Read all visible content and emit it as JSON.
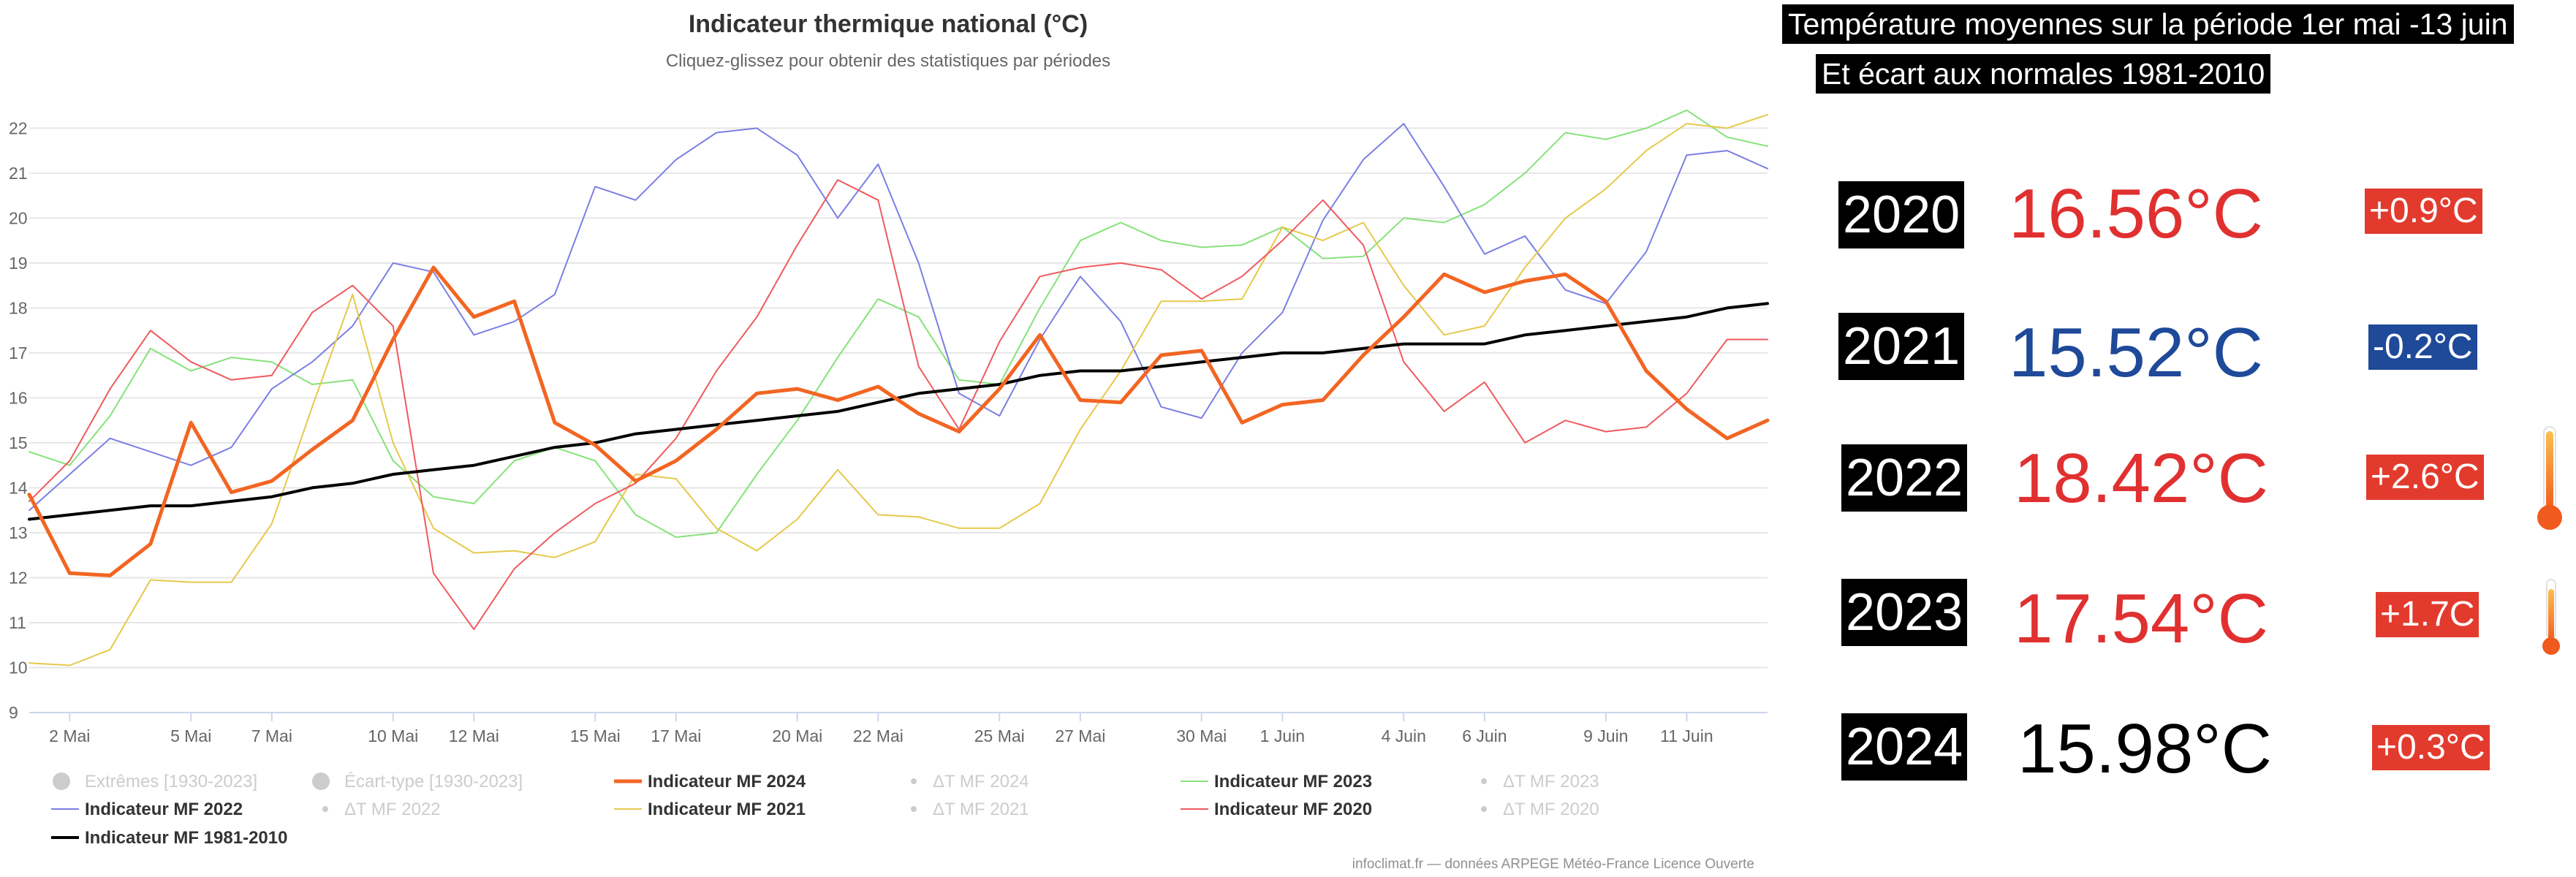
{
  "chart": {
    "title": "Indicateur thermique national (°C)",
    "subtitle": "Cliquez-glissez pour obtenir des statistiques par périodes",
    "credits": "infoclimat.fr — données ARPEGE Météo-France Licence Ouverte"
  },
  "colors": {
    "s2024": "#f26522",
    "s2023": "#86e27a",
    "s2022": "#7b7fe3",
    "s2021": "#e5c94a",
    "s2020": "#ef5a5f",
    "normal": "#000000",
    "red_text": "#e03030",
    "blue_text": "#1f4999",
    "red_badge": "#e23b2e",
    "blue_badge": "#1f4999"
  },
  "chart_data": {
    "type": "line",
    "title": "Indicateur thermique national (°C)",
    "xlabel": "",
    "ylabel": "",
    "ylim": [
      9,
      22.9
    ],
    "yticks": [
      9,
      10,
      11,
      12,
      13,
      14,
      15,
      16,
      17,
      18,
      19,
      20,
      21,
      22
    ],
    "x_start": "1 Mai",
    "x_days": 44,
    "xtick_days": [
      1,
      4,
      7,
      10,
      13,
      16,
      19,
      22,
      25,
      28,
      31,
      34,
      37,
      40,
      43
    ],
    "xtick_labels": [
      "2 Mai",
      "5 Mai",
      "7 Mai",
      "10 Mai",
      "12 Mai",
      "15 Mai",
      "17 Mai",
      "20 Mai",
      "22 Mai",
      "25 Mai",
      "27 Mai",
      "30 Mai",
      "1 Juin",
      "4 Juin",
      "6 Juin",
      "9 Juin",
      "11 Juin"
    ],
    "xtick_index": [
      1,
      4,
      6,
      9,
      11,
      14,
      16,
      19,
      21,
      24,
      26,
      29,
      31,
      34,
      36,
      39,
      41
    ],
    "grid": true,
    "legend_position": "bottom",
    "series": [
      {
        "name": "Indicateur MF 2023",
        "key": "s2023",
        "width": 2,
        "values": [
          14.8,
          14.5,
          15.6,
          17.1,
          16.6,
          16.9,
          16.8,
          16.3,
          16.4,
          14.6,
          13.8,
          13.65,
          14.6,
          14.9,
          14.6,
          13.4,
          12.9,
          13.0,
          14.3,
          15.5,
          16.9,
          18.2,
          17.8,
          16.4,
          16.3,
          18.0,
          19.5,
          19.9,
          19.5,
          19.35,
          19.4,
          19.8,
          19.1,
          19.15,
          20.0,
          19.9,
          20.3,
          21.0,
          21.9,
          21.75,
          22.0,
          22.4,
          21.8,
          21.6
        ]
      },
      {
        "name": "Indicateur MF 2022",
        "key": "s2022",
        "width": 2,
        "values": [
          13.5,
          14.3,
          15.1,
          14.8,
          14.5,
          14.9,
          16.2,
          16.8,
          17.6,
          19.0,
          18.8,
          17.4,
          17.7,
          18.3,
          20.7,
          20.4,
          21.3,
          21.9,
          22.0,
          21.4,
          20.0,
          21.2,
          19.0,
          16.1,
          15.6,
          17.3,
          18.7,
          17.7,
          15.8,
          15.55,
          17.0,
          17.9,
          19.95,
          21.3,
          22.1,
          20.7,
          19.2,
          19.6,
          18.4,
          18.1,
          19.25,
          21.4,
          21.5,
          21.1
        ]
      },
      {
        "name": "Indicateur MF 2021",
        "key": "s2021",
        "width": 2,
        "values": [
          10.1,
          10.05,
          10.4,
          11.95,
          11.9,
          11.9,
          13.2,
          15.8,
          18.3,
          15.0,
          13.1,
          12.55,
          12.6,
          12.45,
          12.8,
          14.3,
          14.2,
          13.1,
          12.6,
          13.3,
          14.4,
          13.4,
          13.35,
          13.1,
          13.1,
          13.65,
          15.3,
          16.6,
          18.15,
          18.15,
          18.2,
          19.8,
          19.5,
          19.9,
          18.5,
          17.4,
          17.6,
          18.9,
          20.0,
          20.65,
          21.5,
          22.1,
          22.0,
          22.3
        ]
      },
      {
        "name": "Indicateur MF 2020",
        "key": "s2020",
        "width": 2,
        "values": [
          13.7,
          14.6,
          16.2,
          17.5,
          16.8,
          16.4,
          16.5,
          17.9,
          18.5,
          17.6,
          12.1,
          10.85,
          12.2,
          13.0,
          13.65,
          14.1,
          15.1,
          16.6,
          17.8,
          19.4,
          20.85,
          20.4,
          16.7,
          15.3,
          17.25,
          18.7,
          18.9,
          19.0,
          18.85,
          18.2,
          18.7,
          19.5,
          20.4,
          19.4,
          16.8,
          15.7,
          16.35,
          15.0,
          15.5,
          15.25,
          15.35,
          16.1,
          17.3,
          17.3
        ]
      },
      {
        "name": "Indicateur MF 1981-2010",
        "key": "normal",
        "width": 4,
        "values": [
          13.3,
          13.4,
          13.5,
          13.6,
          13.6,
          13.7,
          13.8,
          14.0,
          14.1,
          14.3,
          14.4,
          14.5,
          14.7,
          14.9,
          15.0,
          15.2,
          15.3,
          15.4,
          15.5,
          15.6,
          15.7,
          15.9,
          16.1,
          16.2,
          16.3,
          16.5,
          16.6,
          16.6,
          16.7,
          16.8,
          16.9,
          17.0,
          17.0,
          17.1,
          17.2,
          17.2,
          17.2,
          17.4,
          17.5,
          17.6,
          17.7,
          17.8,
          18.0,
          18.1
        ]
      },
      {
        "name": "Indicateur MF 2024",
        "key": "s2024",
        "width": 5,
        "values": [
          13.85,
          12.1,
          12.05,
          12.75,
          15.45,
          13.9,
          14.15,
          14.85,
          15.5,
          17.3,
          18.9,
          17.8,
          18.15,
          15.45,
          14.95,
          14.15,
          14.6,
          15.3,
          16.1,
          16.2,
          15.95,
          16.25,
          15.65,
          15.25,
          16.2,
          17.4,
          15.95,
          15.9,
          16.95,
          17.05,
          15.45,
          15.85,
          15.95,
          16.95,
          17.8,
          18.75,
          18.35,
          18.6,
          18.75,
          18.15,
          16.6,
          15.75,
          15.1,
          15.5
        ]
      }
    ]
  },
  "legend": {
    "rows": [
      [
        {
          "label": "Extrêmes [1930-2023]",
          "symbol": "circle",
          "enabled": false
        },
        {
          "label": "Écart-type [1930-2023]",
          "symbol": "circle",
          "enabled": false
        },
        {
          "label": "Indicateur MF 2024",
          "symbol": "line",
          "key": "s2024",
          "width": 5,
          "enabled": true
        },
        {
          "label": "ΔT MF 2024",
          "symbol": "dot",
          "enabled": false
        },
        {
          "label": "Indicateur MF 2023",
          "symbol": "line",
          "key": "s2023",
          "width": 2,
          "enabled": true
        },
        {
          "label": "ΔT MF 2023",
          "symbol": "dot",
          "enabled": false
        }
      ],
      [
        {
          "label": "Indicateur MF 2022",
          "symbol": "line",
          "key": "s2022",
          "width": 2,
          "enabled": true
        },
        {
          "label": "ΔT MF 2022",
          "symbol": "dot",
          "enabled": false
        },
        {
          "label": "Indicateur MF 2021",
          "symbol": "line",
          "key": "s2021",
          "width": 2,
          "enabled": true
        },
        {
          "label": "ΔT MF 2021",
          "symbol": "dot",
          "enabled": false
        },
        {
          "label": "Indicateur MF 2020",
          "symbol": "line",
          "key": "s2020",
          "width": 2,
          "enabled": true
        },
        {
          "label": "ΔT MF 2020",
          "symbol": "dot",
          "enabled": false
        }
      ],
      [
        {
          "label": "Indicateur MF 1981-2010",
          "symbol": "line",
          "key": "normal",
          "width": 4,
          "enabled": true
        }
      ]
    ]
  },
  "summary": {
    "headline1": "Température moyennes sur la période 1er mai -13 juin",
    "headline2": "Et écart aux normales 1981-2010",
    "rows": [
      {
        "year": "2020",
        "temp": "16.56°C",
        "anomaly": "+0.9°C",
        "tone": "red",
        "thermometer": false
      },
      {
        "year": "2021",
        "temp": "15.52°C",
        "anomaly": "-0.2°C",
        "tone": "blue",
        "thermometer": false
      },
      {
        "year": "2022",
        "temp": "18.42°C",
        "anomaly": "+2.6°C",
        "tone": "red",
        "thermometer": true
      },
      {
        "year": "2023",
        "temp": "17.54°C",
        "anomaly": "+1.7C",
        "tone": "red",
        "thermometer": true
      },
      {
        "year": "2024",
        "temp": "15.98°C",
        "anomaly": "+0.3°C",
        "tone": "black",
        "thermometer": false
      }
    ]
  }
}
